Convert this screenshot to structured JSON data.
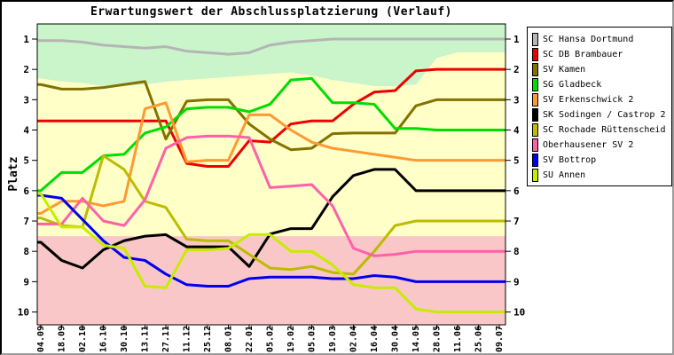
{
  "chart_data": {
    "type": "line",
    "title": "Erwartungswert der Abschlussplatzierung (Verlauf)",
    "ylabel": "Platz",
    "y_axis_inverted": true,
    "y_ticks": [
      1,
      2,
      3,
      4,
      5,
      6,
      7,
      8,
      9,
      10
    ],
    "grid": false,
    "legend_position": "right",
    "x_tick_labels": [
      "04.09",
      "18.09",
      "02.10",
      "16.10",
      "30.10",
      "13.11",
      "27.11",
      "11.12",
      "25.12",
      "08.01",
      "22.01",
      "05.02",
      "19.02",
      "05.03",
      "19.03",
      "02.04",
      "16.04",
      "30.04",
      "14.05",
      "28.05",
      "11.06",
      "25.06",
      "09.07"
    ],
    "zones": {
      "promotion_color": "#caf4ca",
      "midfield_color": "#ffffc8",
      "relegation_color": "#f9c7c7",
      "promotion_boundary_platz": [
        2.3,
        2.4,
        2.45,
        2.55,
        2.55,
        2.5,
        2.4,
        2.35,
        2.3,
        2.25,
        2.2,
        2.15,
        2.1,
        2.2,
        2.35,
        2.45,
        2.55,
        2.55,
        2.5,
        1.62,
        1.44,
        1.44,
        1.44
      ],
      "relegation_boundary_platz": 7.5
    },
    "series": [
      {
        "name": "SC Hansa Dortmund",
        "color": "#b5b5b5",
        "values": [
          1.05,
          1.05,
          1.1,
          1.2,
          1.25,
          1.3,
          1.25,
          1.4,
          1.45,
          1.5,
          1.45,
          1.2,
          1.1,
          1.05,
          1.0,
          1.0,
          1.0,
          1.0,
          1.0,
          1.0,
          1.0,
          1.0,
          1.0
        ]
      },
      {
        "name": "SC DB Brambauer",
        "color": "#ee0000",
        "values": [
          3.7,
          3.7,
          3.7,
          3.7,
          3.7,
          3.7,
          3.7,
          5.1,
          5.2,
          5.2,
          4.35,
          4.4,
          3.8,
          3.7,
          3.7,
          3.15,
          2.75,
          2.7,
          2.05,
          2.0,
          2.0,
          2.0,
          2.0
        ]
      },
      {
        "name": "SV Kamen",
        "color": "#827200",
        "values": [
          2.5,
          2.65,
          2.65,
          2.6,
          2.5,
          2.4,
          4.3,
          3.05,
          3.0,
          3.0,
          3.8,
          4.3,
          4.65,
          4.6,
          4.12,
          4.1,
          4.1,
          4.1,
          3.2,
          3.0,
          3.0,
          3.0,
          3.0
        ]
      },
      {
        "name": "SG Gladbeck",
        "color": "#00dd00",
        "values": [
          6.0,
          5.4,
          5.4,
          4.85,
          4.8,
          4.1,
          3.9,
          3.3,
          3.25,
          3.25,
          3.4,
          3.15,
          2.35,
          2.3,
          3.1,
          3.1,
          3.15,
          3.95,
          3.95,
          4.0,
          4.0,
          4.0,
          4.0
        ]
      },
      {
        "name": "SV Erkenschwick 2",
        "color": "#ff9933",
        "values": [
          6.75,
          6.35,
          6.35,
          6.5,
          6.35,
          3.3,
          3.1,
          5.05,
          5.0,
          5.0,
          3.5,
          3.5,
          4.0,
          4.4,
          4.6,
          4.7,
          4.8,
          4.9,
          5.0,
          5.0,
          5.0,
          5.0,
          5.0
        ]
      },
      {
        "name": "SK Sodingen / Castrop 2",
        "color": "#000000",
        "values": [
          7.7,
          8.3,
          8.55,
          7.95,
          7.65,
          7.5,
          7.45,
          7.85,
          7.85,
          7.85,
          8.5,
          7.43,
          7.25,
          7.25,
          6.2,
          5.5,
          5.3,
          5.3,
          6.0,
          6.0,
          6.0,
          6.0,
          6.0
        ]
      },
      {
        "name": "SC Rochade Rüttenscheid",
        "color": "#bcbc00",
        "values": [
          6.9,
          7.15,
          7.2,
          4.85,
          5.3,
          6.35,
          6.55,
          7.6,
          7.65,
          7.65,
          8.1,
          8.55,
          8.6,
          8.5,
          8.7,
          8.75,
          8.0,
          7.15,
          7.0,
          7.0,
          7.0,
          7.0,
          7.0
        ]
      },
      {
        "name": "Oberhausener SV 2",
        "color": "#ff60aa",
        "values": [
          7.1,
          7.1,
          6.25,
          7.0,
          7.15,
          6.3,
          4.6,
          4.25,
          4.2,
          4.2,
          4.25,
          5.9,
          5.85,
          5.8,
          6.5,
          7.9,
          8.15,
          8.1,
          8.0,
          8.0,
          8.0,
          8.0,
          8.0
        ]
      },
      {
        "name": "SV Bottrop",
        "color": "#0000ee",
        "values": [
          6.15,
          6.25,
          6.95,
          7.65,
          8.2,
          8.3,
          8.75,
          9.1,
          9.15,
          9.15,
          8.9,
          8.85,
          8.85,
          8.85,
          8.9,
          8.9,
          8.8,
          8.85,
          9.0,
          9.0,
          9.0,
          9.0,
          9.0
        ]
      },
      {
        "name": "SU Annen",
        "color": "#c8ec00",
        "values": [
          6.1,
          7.2,
          7.2,
          7.8,
          7.9,
          9.15,
          9.2,
          7.95,
          7.95,
          7.9,
          7.45,
          7.45,
          8.0,
          8.0,
          8.45,
          9.1,
          9.2,
          9.2,
          9.9,
          10.0,
          10.0,
          10.0,
          10.0
        ]
      }
    ]
  }
}
